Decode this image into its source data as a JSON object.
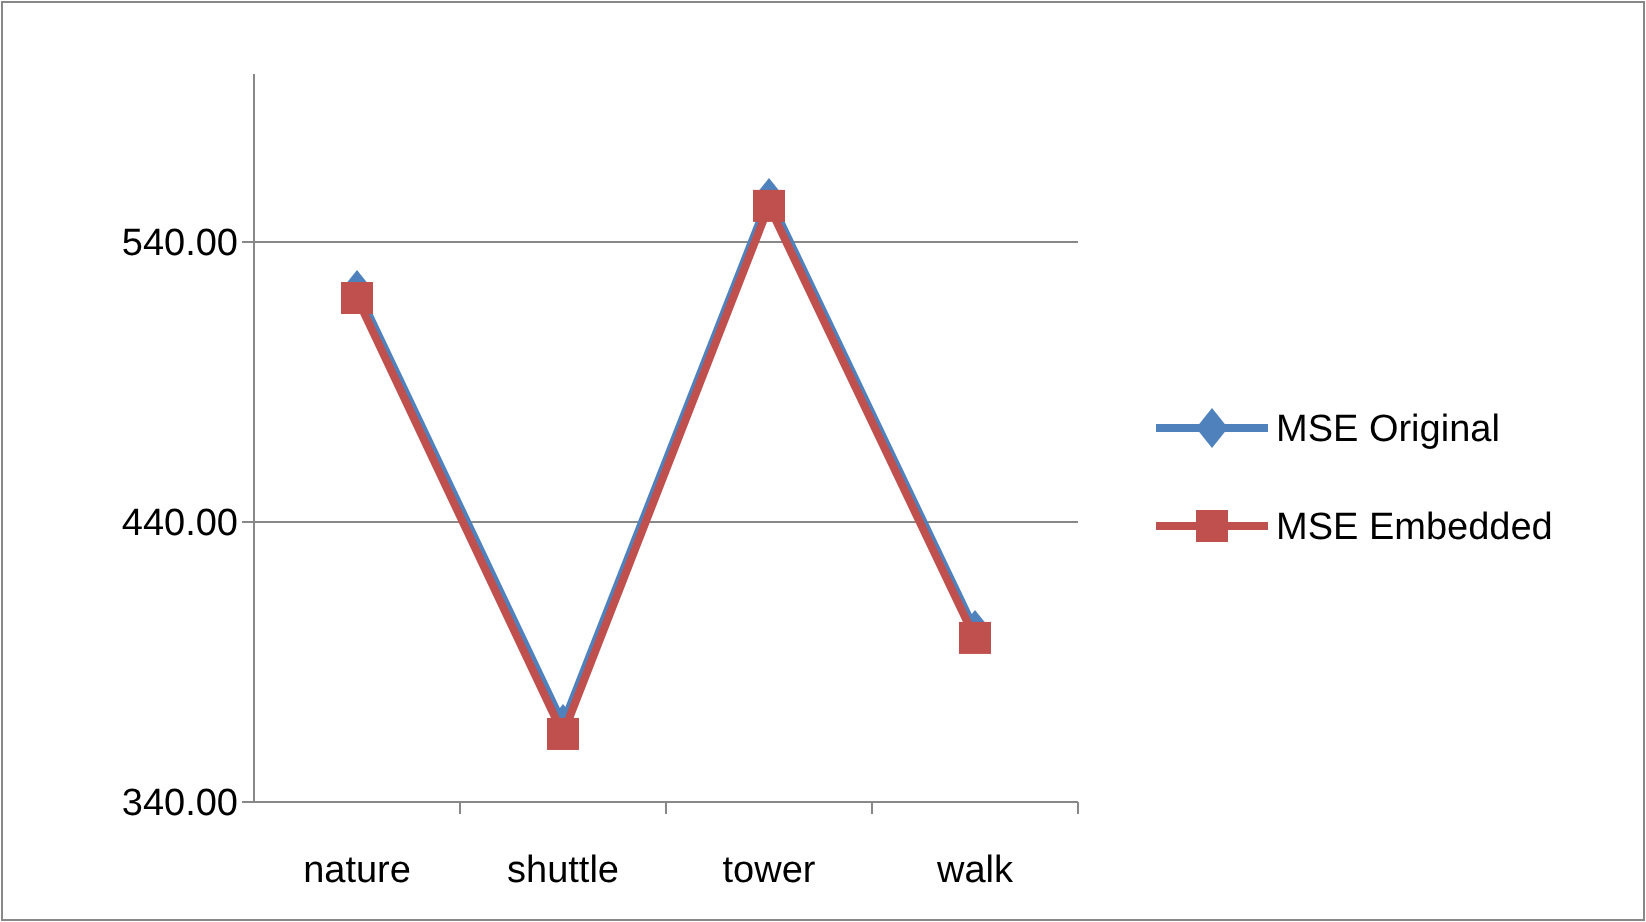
{
  "chart_data": {
    "type": "line",
    "categories": [
      "nature",
      "shuttle",
      "tower",
      "walk"
    ],
    "series": [
      {
        "name": "MSE Original",
        "color": "#4f81bd",
        "marker": "diamond",
        "values": [
          522.9,
          367.9,
          555.7,
          401.4
        ]
      },
      {
        "name": "MSE Embedded",
        "color": "#c0504d",
        "marker": "square",
        "values": [
          520,
          364.3,
          552.9,
          398.6
        ]
      }
    ],
    "ylim": [
      340,
      600
    ],
    "yticks": [
      {
        "value": 340,
        "label": "340.00"
      },
      {
        "value": 440,
        "label": "440.00"
      },
      {
        "value": 540,
        "label": "540.00"
      }
    ],
    "grid": "y",
    "legend": "right"
  }
}
